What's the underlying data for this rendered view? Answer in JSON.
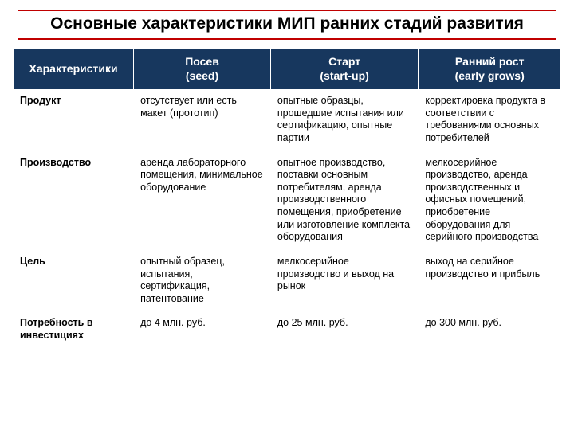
{
  "title": "Основные характеристики МИП ранних стадий развития",
  "columns": [
    {
      "main": "Характеристики",
      "sub": ""
    },
    {
      "main": "Посев",
      "sub": "(seed)"
    },
    {
      "main": "Старт",
      "sub": "(start-up)"
    },
    {
      "main": "Ранний рост",
      "sub": "(early grows)"
    }
  ],
  "rows": [
    {
      "head": "Продукт",
      "c1": "отсутствует или есть макет (прототип)",
      "c2": "опытные образцы, прошедшие испытания или сертификацию, опытные партии",
      "c3": "корректировка продукта в соответствии с требованиями основных потребителей"
    },
    {
      "head": "Производство",
      "c1": "аренда лабораторного помещения, минимальное оборудование",
      "c2": "опытное производство, поставки основным потребителям, аренда производственного помещения, приобретение или изготовление комплекта оборудования",
      "c3": "мелкосерийное производство, аренда производственных и офисных помещений, приобретение оборудования для серийного производства"
    },
    {
      "head": "Цель",
      "c1": "опытный образец, испытания, сертификация, патентование",
      "c2": "мелкосерийное производство и выход на рынок",
      "c3": "выход на серийное производство и прибыль"
    },
    {
      "head": "Потребность в инвестициях",
      "c1": "до 4 млн. руб.",
      "c2": "до 25 млн. руб.",
      "c3": "до 300 млн. руб."
    }
  ]
}
